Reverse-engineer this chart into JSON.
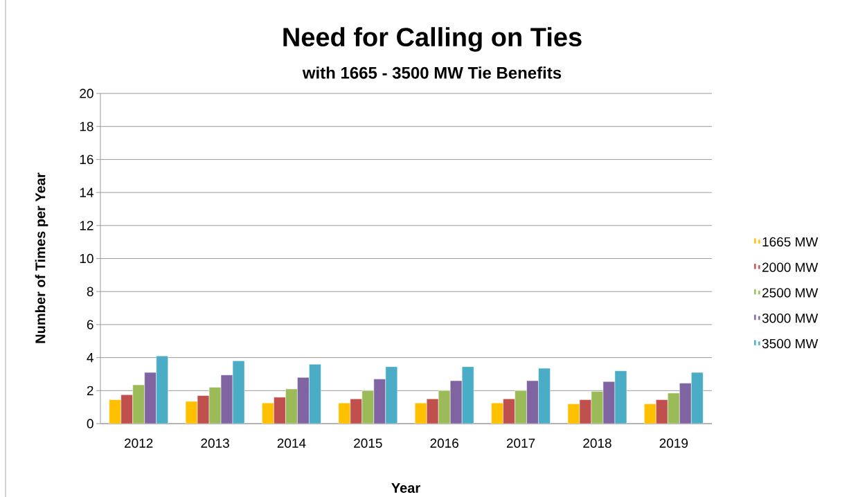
{
  "chart_data": {
    "type": "bar",
    "title": "Need for Calling on Ties",
    "subtitle": "with 1665 - 3500 MW Tie Benefits",
    "xlabel": "Year",
    "ylabel": "Number of Times per Year",
    "categories": [
      "2012",
      "2013",
      "2014",
      "2015",
      "2016",
      "2017",
      "2018",
      "2019"
    ],
    "series": [
      {
        "name": "1665 MW",
        "color": "#ffc000",
        "values": [
          1.45,
          1.35,
          1.25,
          1.25,
          1.25,
          1.25,
          1.2,
          1.2
        ]
      },
      {
        "name": "2000 MW",
        "color": "#c0504d",
        "values": [
          1.75,
          1.7,
          1.6,
          1.5,
          1.5,
          1.5,
          1.45,
          1.45
        ]
      },
      {
        "name": "2500 MW",
        "color": "#9bbb59",
        "values": [
          2.35,
          2.2,
          2.1,
          2.0,
          2.0,
          2.0,
          1.95,
          1.85
        ]
      },
      {
        "name": "3000 MW",
        "color": "#8064a2",
        "values": [
          3.1,
          2.95,
          2.8,
          2.7,
          2.6,
          2.6,
          2.55,
          2.45
        ]
      },
      {
        "name": "3500 MW",
        "color": "#4bacc6",
        "values": [
          4.1,
          3.8,
          3.6,
          3.45,
          3.45,
          3.35,
          3.2,
          3.1
        ]
      }
    ],
    "ylim": [
      0,
      20
    ],
    "yticks": [
      0,
      2,
      4,
      6,
      8,
      10,
      12,
      14,
      16,
      18,
      20
    ],
    "grid": "y",
    "legend": "right"
  }
}
